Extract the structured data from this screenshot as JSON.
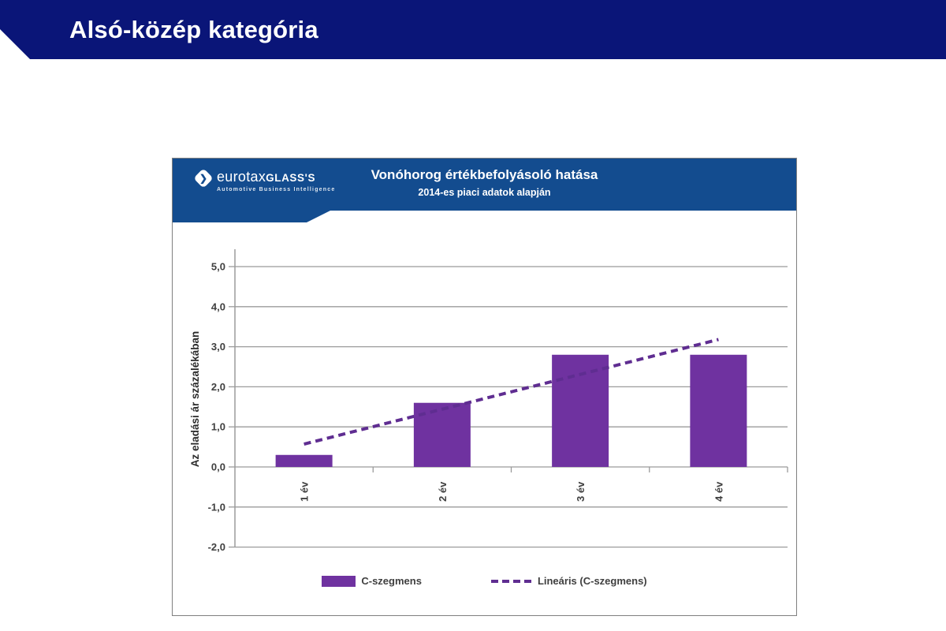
{
  "header": {
    "title": "Alsó-közép kategória"
  },
  "logo": {
    "brand_light": "eurotax",
    "brand_bold": "GLASS'S",
    "tagline": "Automotive Business Intelligence",
    "icon": "chevron-diamond"
  },
  "colors": {
    "header_navy": "#0A1578",
    "banner_blue": "#134C8F",
    "bar_purple": "#6F32A0",
    "trend_purple": "#5F2D91",
    "grid_gray": "#9B9B9B",
    "tick_text": "#3F3F3F",
    "card_border": "#808080"
  },
  "chart_data": {
    "type": "bar",
    "title": "Vonóhorog értékbefolyásoló hatása",
    "subtitle": "2014-es piaci adatok alapján",
    "categories": [
      "1 év",
      "2 év",
      "3 év",
      "4 év"
    ],
    "series": [
      {
        "name": "C-szegmens",
        "type": "bar",
        "values": [
          0.3,
          1.6,
          2.8,
          2.8
        ],
        "color": "#6F32A0"
      },
      {
        "name": "Lineáris (C-szegmens)",
        "type": "line-dashed",
        "values": [
          0.57,
          1.44,
          2.31,
          3.18
        ],
        "color": "#5F2D91"
      }
    ],
    "xlabel": "",
    "ylabel": "Az eladási ár százalékában",
    "ylim": [
      -2,
      5
    ],
    "ytick_step": 1,
    "ytick_labels": [
      "5,0",
      "4,0",
      "3,0",
      "2,0",
      "1,0",
      "0,0",
      "-1,0",
      "-2,0"
    ],
    "grid": true,
    "legend_position": "bottom"
  }
}
